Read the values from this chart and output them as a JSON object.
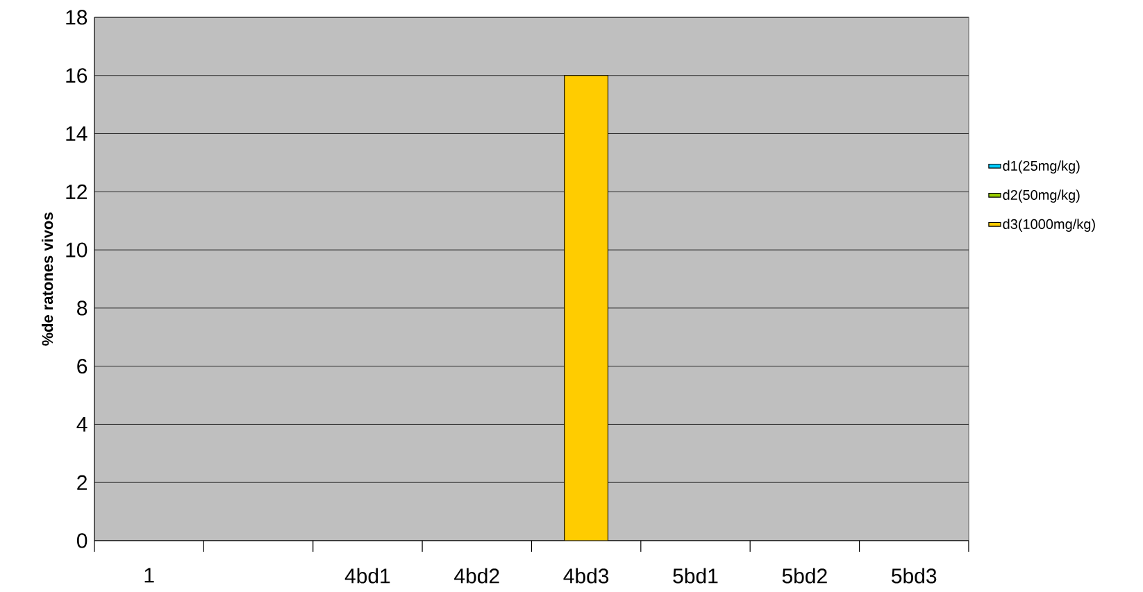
{
  "chart_data": {
    "type": "bar",
    "ylabel": "%de ratones vivos",
    "categories": [
      "1",
      null,
      "4bd1",
      "4bd2",
      "4bd3",
      "5bd1",
      "5bd2",
      "5bd3"
    ],
    "series": [
      {
        "name": "d1(25mg/kg)",
        "color": "#00ccff",
        "values": [
          null,
          null,
          null,
          null,
          null,
          null,
          null,
          null
        ]
      },
      {
        "name": "d2(50mg/kg)",
        "color": "#99cc00",
        "values": [
          null,
          null,
          null,
          null,
          null,
          null,
          null,
          null
        ]
      },
      {
        "name": "d3(1000mg/kg)",
        "color": "#ffcc00",
        "values": [
          null,
          null,
          null,
          null,
          16,
          null,
          null,
          null
        ]
      }
    ],
    "ylim": [
      0,
      18
    ],
    "yticks": [
      0,
      2,
      4,
      6,
      8,
      10,
      12,
      14,
      16,
      18
    ],
    "grid": "y",
    "legend": "right"
  }
}
